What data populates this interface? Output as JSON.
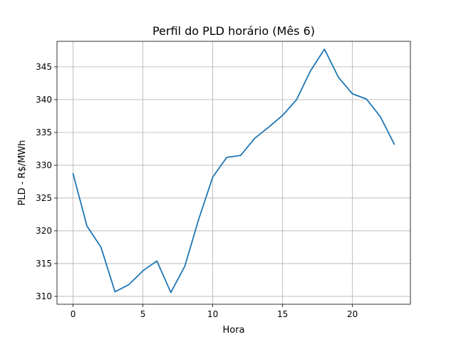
{
  "chart_data": {
    "type": "line",
    "title": "Perfil do PLD horário (Mês 6)",
    "xlabel": "Hora",
    "ylabel": "PLD - R$/MWh",
    "xlim": [
      -1.15,
      24.15
    ],
    "ylim": [
      308.8,
      348.9
    ],
    "xticks": [
      0,
      5,
      10,
      15,
      20
    ],
    "yticks": [
      310,
      315,
      320,
      325,
      330,
      335,
      340,
      345
    ],
    "grid": true,
    "series": [
      {
        "color": "#1f77b4",
        "x": [
          0,
          1,
          2,
          3,
          4,
          5,
          6,
          7,
          8,
          9,
          10,
          11,
          12,
          13,
          14,
          15,
          16,
          17,
          18,
          19,
          20,
          21,
          22,
          23
        ],
        "y": [
          328.7,
          320.7,
          317.5,
          310.7,
          311.8,
          313.9,
          315.4,
          310.6,
          314.6,
          321.8,
          328.2,
          331.2,
          331.5,
          334.1,
          335.8,
          337.6,
          340.0,
          344.4,
          347.7,
          343.4,
          340.9,
          340.1,
          337.4,
          333.2
        ]
      }
    ]
  }
}
